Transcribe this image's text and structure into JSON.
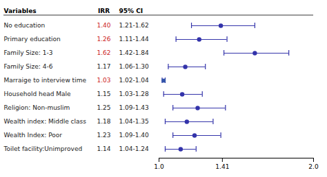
{
  "chart_data": {
    "type": "forest",
    "column_headers": [
      "Variables",
      "IRR",
      "95% CI"
    ],
    "categories": [
      "No education",
      "Primary education",
      "Family Size: 1-3",
      "Family Size: 4-6",
      "Marraige to interview time",
      "Household head Male",
      "Religion: Non-muslim",
      "Wealth index: Middle class",
      "Wealth Index: Poor",
      "Toilet facility:Unimproved"
    ],
    "values": [
      1.4,
      1.26,
      1.62,
      1.17,
      1.03,
      1.15,
      1.25,
      1.18,
      1.23,
      1.14
    ],
    "value_labels": [
      "1.40",
      "1.26",
      "1.62",
      "1.17",
      "1.03",
      "1.15",
      "1.25",
      "1.18",
      "1.23",
      "1.14"
    ],
    "value_label_colors": [
      "#cc2222",
      "#cc2222",
      "#cc2222",
      "#222222",
      "#cc2222",
      "#222222",
      "#222222",
      "#222222",
      "#222222",
      "#222222"
    ],
    "ci_low": [
      1.21,
      1.11,
      1.42,
      1.06,
      1.02,
      1.03,
      1.09,
      1.04,
      1.09,
      1.04
    ],
    "ci_high": [
      1.62,
      1.44,
      1.84,
      1.3,
      1.04,
      1.28,
      1.43,
      1.35,
      1.4,
      1.24
    ],
    "ci_labels": [
      "1.21-1.62",
      "1.11-1.44",
      "1.42-1.84",
      "1.06-1.30",
      "1.02-1.04",
      "1.03-1.28",
      "1.09-1.43",
      "1.04-1.35",
      "1.09-1.40",
      "1.04-1.24"
    ],
    "markers": [
      "circle",
      "circle",
      "circle",
      "circle",
      "square",
      "circle",
      "circle",
      "circle",
      "circle",
      "circle"
    ],
    "color": "#3333aa",
    "colors": [
      "#3333aa",
      "#3333aa",
      "#3333aa",
      "#3333aa",
      "#3355aa",
      "#3333aa",
      "#3333aa",
      "#3333aa",
      "#3333aa",
      "#3333aa"
    ],
    "xlim": [
      1.0,
      2.0
    ],
    "xticks": [
      {
        "value": 1.0,
        "label": "1.0"
      },
      1.41,
      {
        "value": 2.0,
        "label": "2.0"
      }
    ],
    "grid": false
  }
}
